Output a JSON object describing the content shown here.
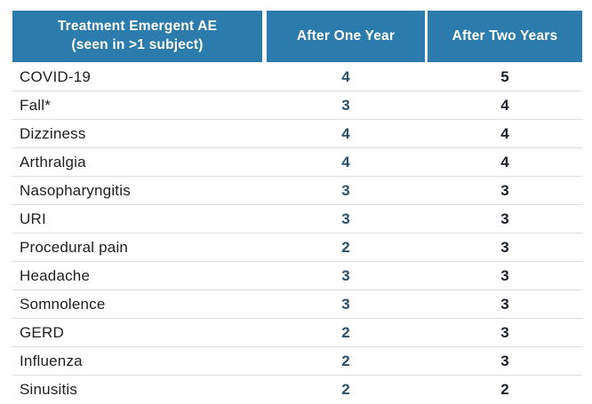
{
  "table": {
    "header": {
      "col1_line1": "Treatment Emergent AE",
      "col1_line2": "(seen in >1 subject)",
      "col2": "After One Year",
      "col3": "After Two Years"
    },
    "rows": [
      {
        "label": "COVID-19",
        "year1": "4",
        "year2": "5"
      },
      {
        "label": "Fall*",
        "year1": "3",
        "year2": "4"
      },
      {
        "label": "Dizziness",
        "year1": "4",
        "year2": "4"
      },
      {
        "label": "Arthralgia",
        "year1": "4",
        "year2": "4"
      },
      {
        "label": "Nasopharyngitis",
        "year1": "3",
        "year2": "3"
      },
      {
        "label": "URI",
        "year1": "3",
        "year2": "3"
      },
      {
        "label": "Procedural pain",
        "year1": "2",
        "year2": "3"
      },
      {
        "label": "Headache",
        "year1": "3",
        "year2": "3"
      },
      {
        "label": "Somnolence",
        "year1": "3",
        "year2": "3"
      },
      {
        "label": "GERD",
        "year1": "2",
        "year2": "3"
      },
      {
        "label": "Influenza",
        "year1": "2",
        "year2": "3"
      },
      {
        "label": "Sinusitis",
        "year1": "2",
        "year2": "2"
      }
    ]
  },
  "colors": {
    "header_background": "#2b7cad",
    "header_text": "#ffffff",
    "row_label_text": "#1f1f1f",
    "after_one_year_number": "#27516b",
    "after_two_years_number": "#1a202a",
    "row_separator": "#dcdcdc"
  },
  "chart_data": {
    "type": "table",
    "title": "Treatment Emergent AE (seen in >1 subject)",
    "columns": [
      "Treatment Emergent AE (seen in >1 subject)",
      "After One Year",
      "After Two Years"
    ],
    "rows": [
      [
        "COVID-19",
        4,
        5
      ],
      [
        "Fall*",
        3,
        4
      ],
      [
        "Dizziness",
        4,
        4
      ],
      [
        "Arthralgia",
        4,
        4
      ],
      [
        "Nasopharyngitis",
        3,
        3
      ],
      [
        "URI",
        3,
        3
      ],
      [
        "Procedural pain",
        2,
        3
      ],
      [
        "Headache",
        3,
        3
      ],
      [
        "Somnolence",
        3,
        3
      ],
      [
        "GERD",
        2,
        3
      ],
      [
        "Influenza",
        2,
        3
      ],
      [
        "Sinusitis",
        2,
        2
      ]
    ]
  }
}
